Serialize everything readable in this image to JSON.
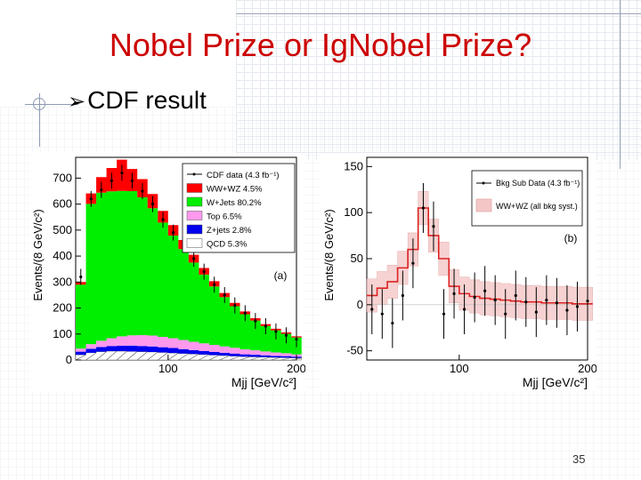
{
  "slide": {
    "title": "Nobel Prize or IgNobel Prize?",
    "bullet": "CDF result",
    "bullet_marker": "arrow-bullet-icon",
    "page_number": "35",
    "colors": {
      "title": "#cc0000",
      "grid": "#e3e8ef"
    }
  },
  "chart_data": [
    {
      "type": "area",
      "panel_label": "(a)",
      "ylabel": "Events/(8 GeV/c²)",
      "xlabel": "Mjj [GeV/c²]",
      "x_ticks": [
        "100",
        "200"
      ],
      "y_ticks": [
        "0",
        "100",
        "200",
        "300",
        "400",
        "500",
        "600",
        "700"
      ],
      "xlim": [
        28,
        200
      ],
      "ylim": [
        0,
        780
      ],
      "legend": [
        "CDF data (4.3 fb⁻¹)",
        "WW+WZ 4.5%",
        "W+Jets 80.2%",
        "Top 6.5%",
        "Z+jets 2.8%",
        "QCD 5.3%"
      ],
      "legend_colors": [
        "#000000",
        "#ff0000",
        "#00ee00",
        "#ff99ee",
        "#0000ee",
        "#ffffff"
      ],
      "x": [
        32,
        40,
        48,
        56,
        64,
        72,
        80,
        88,
        96,
        104,
        112,
        120,
        128,
        136,
        144,
        152,
        160,
        168,
        176,
        184,
        192,
        200
      ],
      "series": [
        {
          "name": "QCD 5.3%",
          "values": [
            20,
            28,
            32,
            34,
            34,
            33,
            32,
            31,
            29,
            27,
            25,
            23,
            21,
            19,
            17,
            15,
            13,
            12,
            11,
            10,
            9,
            8
          ]
        },
        {
          "name": "Z+jets 2.8%",
          "values": [
            12,
            15,
            18,
            20,
            21,
            22,
            22,
            21,
            20,
            19,
            17,
            15,
            13,
            12,
            11,
            10,
            9,
            8,
            7,
            6,
            6,
            5
          ]
        },
        {
          "name": "Top 6.5%",
          "values": [
            12,
            18,
            24,
            30,
            36,
            40,
            42,
            42,
            40,
            38,
            35,
            32,
            30,
            27,
            24,
            22,
            19,
            17,
            15,
            13,
            11,
            9
          ]
        },
        {
          "name": "W+Jets 80.2%",
          "values": [
            246,
            540,
            570,
            565,
            560,
            555,
            530,
            490,
            440,
            395,
            350,
            305,
            265,
            225,
            190,
            160,
            135,
            115,
            98,
            85,
            75,
            65
          ]
        },
        {
          "name": "WW+WZ 4.5%",
          "values": [
            10,
            40,
            60,
            90,
            120,
            85,
            70,
            55,
            45,
            40,
            35,
            30,
            25,
            20,
            16,
            13,
            11,
            9,
            7,
            6,
            5,
            4
          ]
        }
      ],
      "data_points": [
        320,
        620,
        655,
        690,
        720,
        690,
        650,
        600,
        540,
        490,
        445,
        390,
        340,
        290,
        250,
        210,
        180,
        150,
        130,
        110,
        95,
        80
      ]
    },
    {
      "type": "line",
      "panel_label": "(b)",
      "ylabel": "Events/(8 GeV/c²)",
      "xlabel": "Mjj [GeV/c²]",
      "x_ticks": [
        "100",
        "200"
      ],
      "y_ticks": [
        "-50",
        "0",
        "50",
        "100",
        "150"
      ],
      "xlim": [
        28,
        200
      ],
      "ylim": [
        -60,
        160
      ],
      "legend": [
        "Bkg Sub Data (4.3 fb⁻¹)",
        "WW+WZ (all bkg syst.)"
      ],
      "legend_colors": [
        "#000000",
        "#dd2222"
      ],
      "x": [
        32,
        40,
        48,
        56,
        64,
        72,
        80,
        88,
        96,
        104,
        112,
        120,
        128,
        136,
        144,
        152,
        160,
        168,
        176,
        184,
        192,
        200
      ],
      "series": [
        {
          "name": "WW+WZ (all bkg syst.)",
          "values": [
            10,
            18,
            25,
            40,
            60,
            105,
            75,
            50,
            20,
            12,
            9,
            7,
            6,
            5,
            4,
            3,
            3,
            2,
            2,
            2,
            1,
            1
          ]
        }
      ],
      "data_points": [
        -5,
        -10,
        -20,
        10,
        45,
        105,
        85,
        -10,
        12,
        -5,
        8,
        15,
        5,
        -10,
        10,
        3,
        -8,
        5,
        2,
        -6,
        -2,
        4
      ]
    }
  ]
}
